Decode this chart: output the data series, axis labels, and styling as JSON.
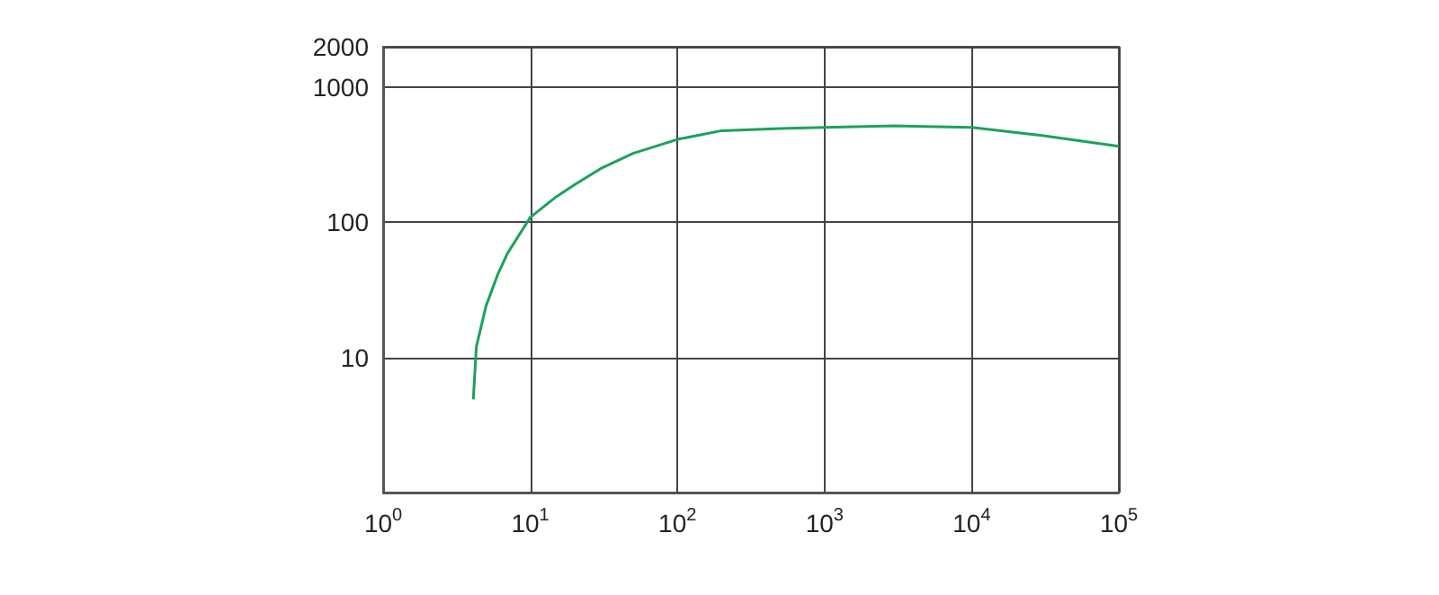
{
  "chart_data": {
    "type": "line",
    "log": "xy",
    "grid": true,
    "marker": "none",
    "line_style": "solid",
    "xlim": [
      1,
      100000
    ],
    "ylim": [
      1,
      2000
    ],
    "xticks": [
      {
        "value": 1,
        "label": "10$^{0}$"
      },
      {
        "value": 10,
        "label": "10$^{1}$"
      },
      {
        "value": 100,
        "label": "10$^{2}$"
      },
      {
        "value": 1000,
        "label": "10$^{3}$"
      },
      {
        "value": 10000,
        "label": "10$^{4}$"
      },
      {
        "value": 100000,
        "label": "10$^{5}$"
      }
    ],
    "yticks": [
      10,
      100,
      1000,
      2000
    ],
    "x": [
      4.1,
      4.3,
      5,
      6,
      7,
      10,
      15,
      20,
      30,
      50,
      100,
      200,
      500,
      1000,
      3000,
      10000,
      30000,
      100000
    ],
    "series": [
      {
        "color": "#1aa35a",
        "values": [
          4.9,
          12,
          24,
          41,
          59,
          109,
          155,
          190,
          250,
          325,
          412,
          478,
          495,
          505,
          520,
          505,
          440,
          366
        ]
      }
    ]
  }
}
